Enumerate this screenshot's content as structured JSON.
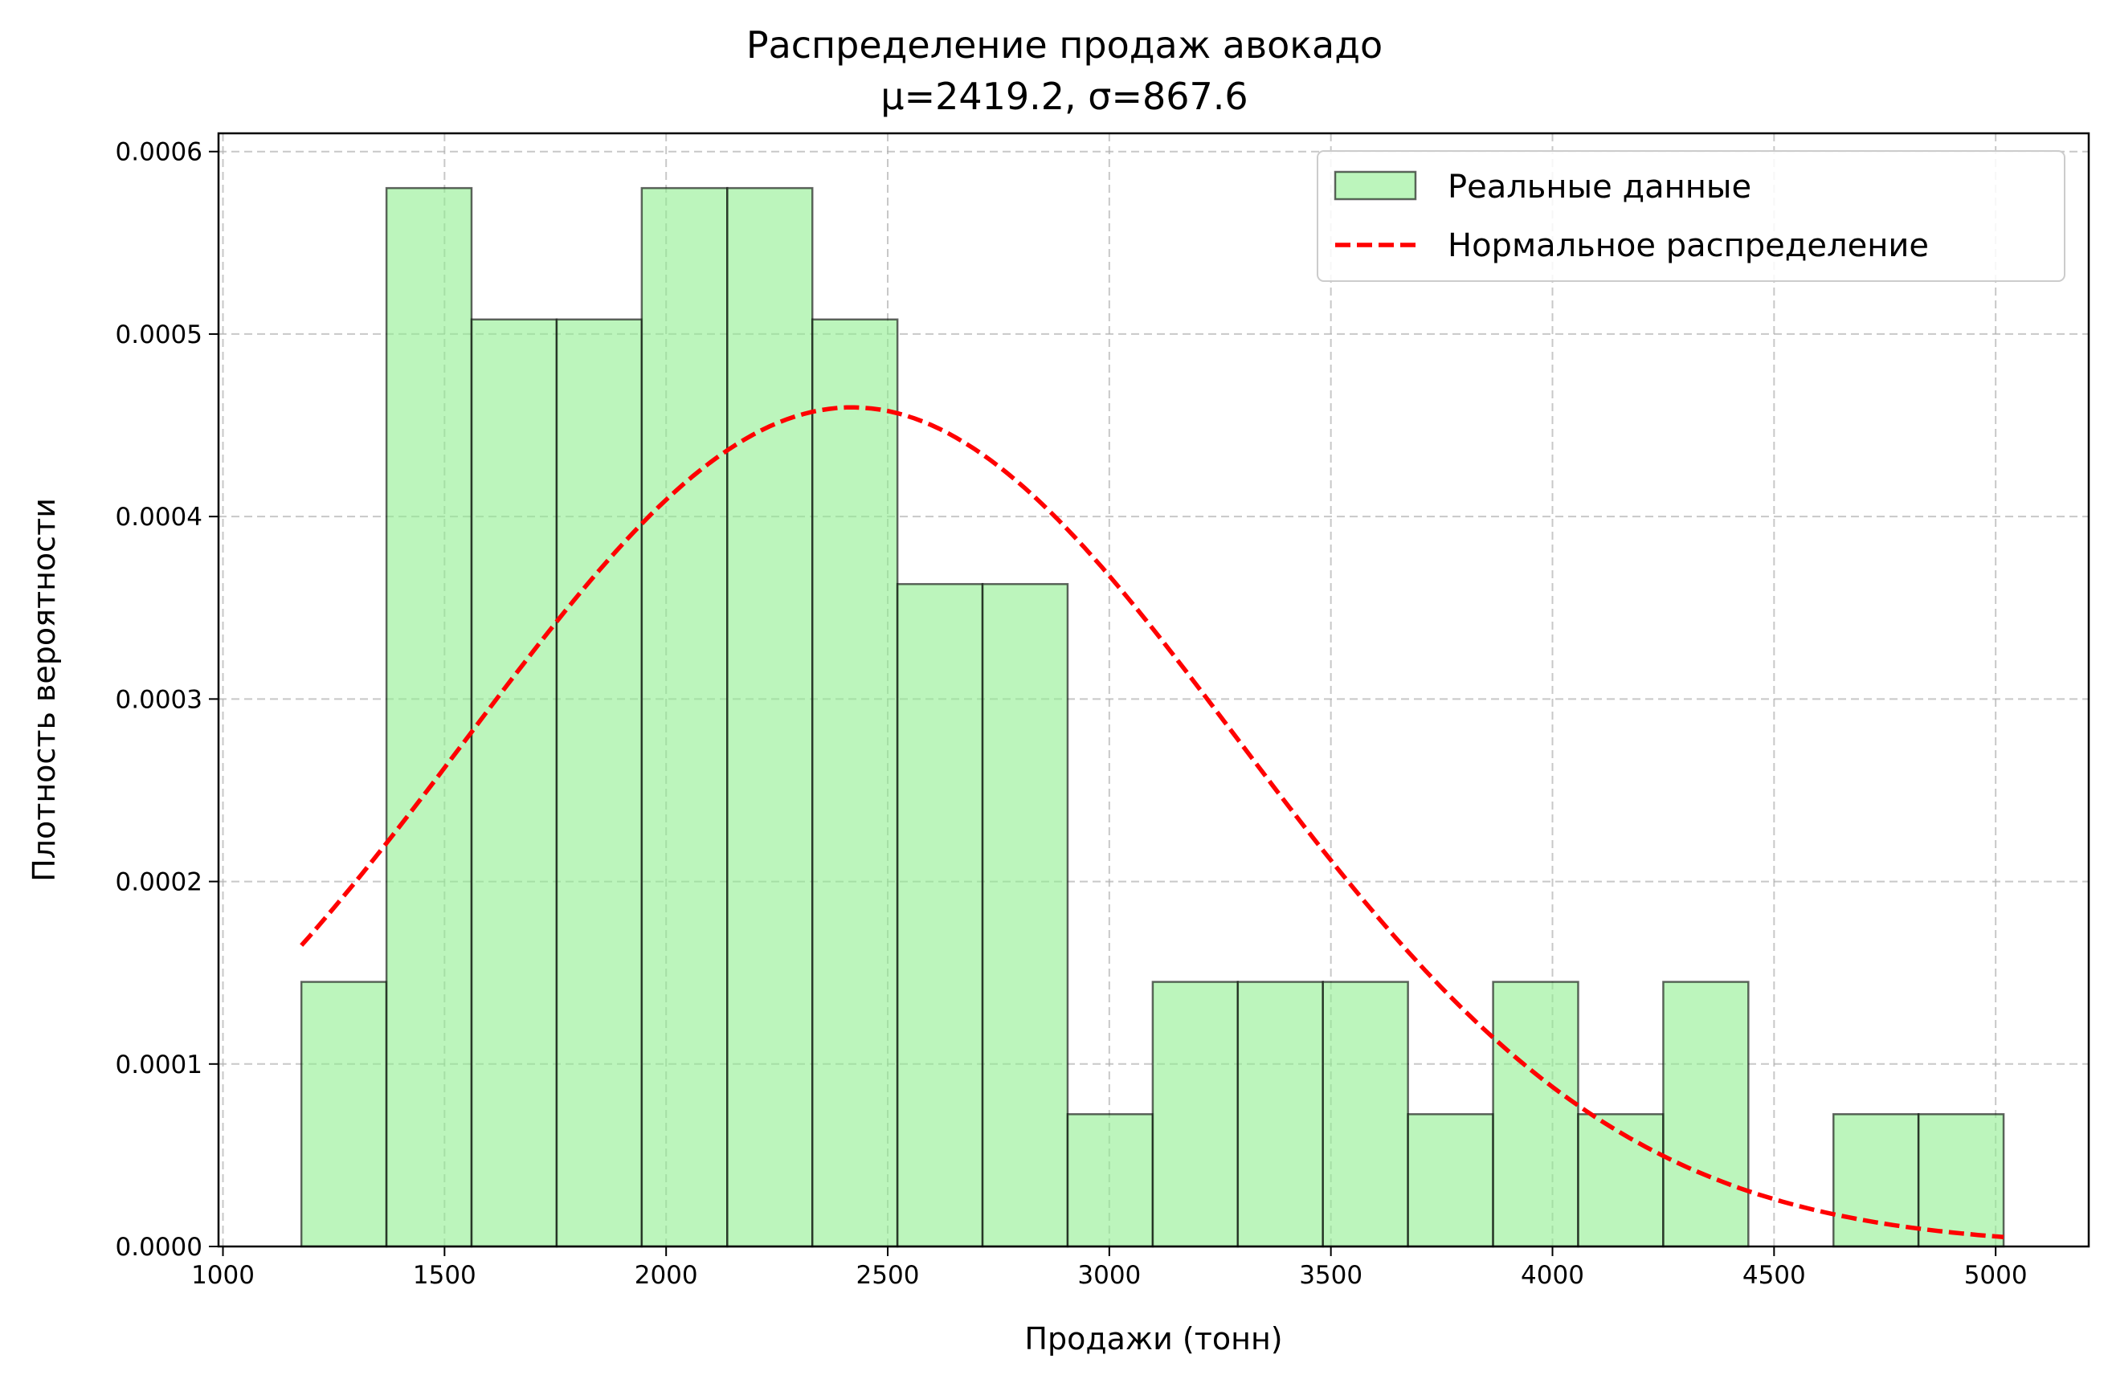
{
  "chart_data": {
    "type": "bar",
    "title": "Распределение продаж авокадо",
    "subtitle": "μ=2419.2, σ=867.6",
    "xlabel": "Продажи (тонн)",
    "ylabel": "Плотность вероятности",
    "xlim": [
      990,
      5210
    ],
    "ylim": [
      0,
      0.00061
    ],
    "xticks": [
      1000,
      1500,
      2000,
      2500,
      3000,
      3500,
      4000,
      4500,
      5000
    ],
    "xtick_labels": [
      "1000",
      "1500",
      "2000",
      "2500",
      "3000",
      "3500",
      "4000",
      "4500",
      "5000"
    ],
    "yticks": [
      0,
      0.0001,
      0.0002,
      0.0003,
      0.0004,
      0.0005,
      0.0006
    ],
    "ytick_labels": [
      "0.0000",
      "0.0001",
      "0.0002",
      "0.0003",
      "0.0004",
      "0.0005",
      "0.0006"
    ],
    "grid": true,
    "legend_position": "top-right",
    "bin_edges": [
      1177,
      1369,
      1561,
      1753,
      1945,
      2138,
      2330,
      2522,
      2714,
      2906,
      3098,
      3290,
      3482,
      3674,
      3866,
      4058,
      4250,
      4442,
      4634,
      4826,
      5018
    ],
    "series": [
      {
        "name": "Реальные данные",
        "kind": "histogram",
        "color": "#90ee90",
        "edge_color": "#000000",
        "values": [
          0.000145,
          0.00058,
          0.000508,
          0.000508,
          0.00058,
          0.00058,
          0.000508,
          0.000363,
          0.000363,
          7.25e-05,
          0.000145,
          0.000145,
          0.000145,
          7.25e-05,
          0.000145,
          7.25e-05,
          0.000145,
          0,
          7.25e-05,
          7.25e-05
        ]
      },
      {
        "name": "Нормальное распределение",
        "kind": "normal-pdf",
        "color": "#ff0000",
        "line_style": "dashed",
        "mu": 2419.2,
        "sigma": 867.6,
        "x_range": [
          1177,
          5018
        ]
      }
    ]
  }
}
